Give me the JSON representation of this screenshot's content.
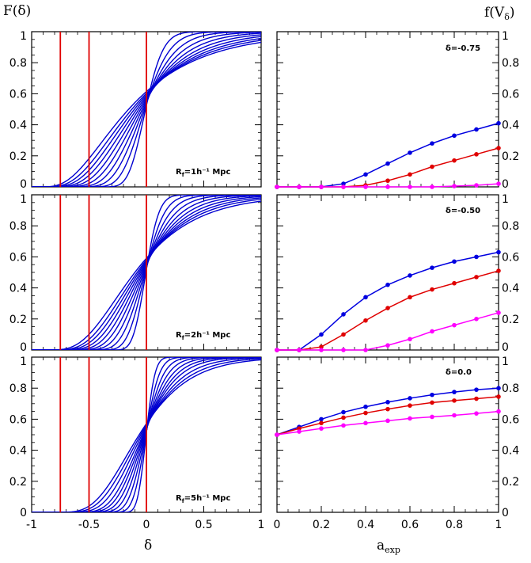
{
  "chart_data": [
    {
      "panel": "left-top",
      "type": "line",
      "ylabel": "F(δ)",
      "xlim": [
        -1,
        1
      ],
      "ylim": [
        0,
        1
      ],
      "vlines": [
        -0.75,
        -0.5,
        0
      ],
      "annotation": "R_f=1h⁻¹ Mpc",
      "curve_sigmas": [
        0.58,
        0.52,
        0.47,
        0.42,
        0.37,
        0.32,
        0.27,
        0.22,
        0.17,
        0.12
      ],
      "colors": {
        "curves": "#0000d0",
        "vlines": "#e00000"
      }
    },
    {
      "panel": "left-middle",
      "type": "line",
      "xlim": [
        -1,
        1
      ],
      "ylim": [
        0,
        1
      ],
      "vlines": [
        -0.75,
        -0.5,
        0
      ],
      "annotation": "R_f=2h⁻¹ Mpc",
      "curve_sigmas": [
        0.46,
        0.41,
        0.37,
        0.33,
        0.29,
        0.25,
        0.21,
        0.17,
        0.13,
        0.09
      ],
      "colors": {
        "curves": "#0000d0",
        "vlines": "#e00000"
      }
    },
    {
      "panel": "left-bottom",
      "type": "line",
      "xlabel": "δ",
      "xlim": [
        -1,
        1
      ],
      "ylim": [
        0,
        1
      ],
      "vlines": [
        -0.75,
        -0.5,
        0
      ],
      "annotation": "R_f=5h⁻¹ Mpc",
      "curve_sigmas": [
        0.36,
        0.32,
        0.28,
        0.24,
        0.21,
        0.18,
        0.15,
        0.12,
        0.09,
        0.06
      ],
      "colors": {
        "curves": "#0000d0",
        "vlines": "#e00000"
      }
    },
    {
      "panel": "right-top",
      "type": "line",
      "ylabel": "f(V_δ)",
      "xlim": [
        0,
        1
      ],
      "ylim": [
        0,
        1
      ],
      "annotation": "δ=-0.75",
      "x": [
        0,
        0.1,
        0.2,
        0.3,
        0.4,
        0.5,
        0.6,
        0.7,
        0.8,
        0.9,
        1.0
      ],
      "series": [
        {
          "color": "#0000e0",
          "values": [
            0,
            0,
            0,
            0.02,
            0.08,
            0.15,
            0.22,
            0.28,
            0.33,
            0.37,
            0.41
          ]
        },
        {
          "color": "#e00000",
          "values": [
            0,
            0,
            0,
            0,
            0.01,
            0.04,
            0.08,
            0.13,
            0.17,
            0.21,
            0.25
          ]
        },
        {
          "color": "#ff00ff",
          "values": [
            0,
            0,
            0,
            0,
            0,
            0,
            0,
            0,
            0.005,
            0.01,
            0.02
          ]
        }
      ]
    },
    {
      "panel": "right-middle",
      "type": "line",
      "xlim": [
        0,
        1
      ],
      "ylim": [
        0,
        1
      ],
      "annotation": "δ=-0.50",
      "x": [
        0,
        0.1,
        0.2,
        0.3,
        0.4,
        0.5,
        0.6,
        0.7,
        0.8,
        0.9,
        1.0
      ],
      "series": [
        {
          "color": "#0000e0",
          "values": [
            0,
            0,
            0.1,
            0.23,
            0.34,
            0.42,
            0.48,
            0.53,
            0.57,
            0.6,
            0.63
          ]
        },
        {
          "color": "#e00000",
          "values": [
            0,
            0,
            0.02,
            0.1,
            0.19,
            0.27,
            0.34,
            0.39,
            0.43,
            0.47,
            0.51
          ]
        },
        {
          "color": "#ff00ff",
          "values": [
            0,
            0,
            0,
            0,
            0,
            0.03,
            0.07,
            0.12,
            0.16,
            0.2,
            0.24
          ]
        }
      ]
    },
    {
      "panel": "right-bottom",
      "type": "line",
      "xlabel": "a_exp",
      "xlim": [
        0,
        1
      ],
      "ylim": [
        0,
        1
      ],
      "annotation": "δ=0.0",
      "x": [
        0,
        0.1,
        0.2,
        0.3,
        0.4,
        0.5,
        0.6,
        0.7,
        0.8,
        0.9,
        1.0
      ],
      "series": [
        {
          "color": "#0000e0",
          "values": [
            0.5,
            0.55,
            0.6,
            0.645,
            0.68,
            0.71,
            0.735,
            0.757,
            0.775,
            0.79,
            0.8
          ]
        },
        {
          "color": "#e00000",
          "values": [
            0.5,
            0.54,
            0.575,
            0.61,
            0.64,
            0.665,
            0.688,
            0.707,
            0.72,
            0.732,
            0.745
          ]
        },
        {
          "color": "#ff00ff",
          "values": [
            0.5,
            0.52,
            0.54,
            0.56,
            0.575,
            0.59,
            0.605,
            0.615,
            0.625,
            0.637,
            0.65
          ]
        }
      ]
    }
  ],
  "tick_labels": {
    "y": [
      "0",
      "0.2",
      "0.4",
      "0.6",
      "0.8",
      "1"
    ],
    "x_left": [
      "-1",
      "-0.5",
      "0",
      "0.5",
      "1"
    ],
    "x_right": [
      "0",
      "0.2",
      "0.4",
      "0.6",
      "0.8",
      "1"
    ]
  },
  "labels": {
    "ylabel_left": "F(δ)",
    "ylabel_right": "f(V",
    "ylabel_right_sub": "δ",
    "xlabel_left": "δ",
    "xlabel_right": "a",
    "xlabel_right_sub": "exp",
    "annot_left_top": "R",
    "annot_left_top_sub": "f",
    "annot_left_top_rest": "=1h⁻¹ Mpc",
    "annot_left_middle": "R",
    "annot_left_middle_sub": "f",
    "annot_left_middle_rest": "=2h⁻¹ Mpc",
    "annot_left_bottom": "R",
    "annot_left_bottom_sub": "f",
    "annot_left_bottom_rest": "=5h⁻¹ Mpc",
    "annot_right_top": "δ=-0.75",
    "annot_right_middle": "δ=-0.50",
    "annot_right_bottom": "δ=0.0"
  }
}
